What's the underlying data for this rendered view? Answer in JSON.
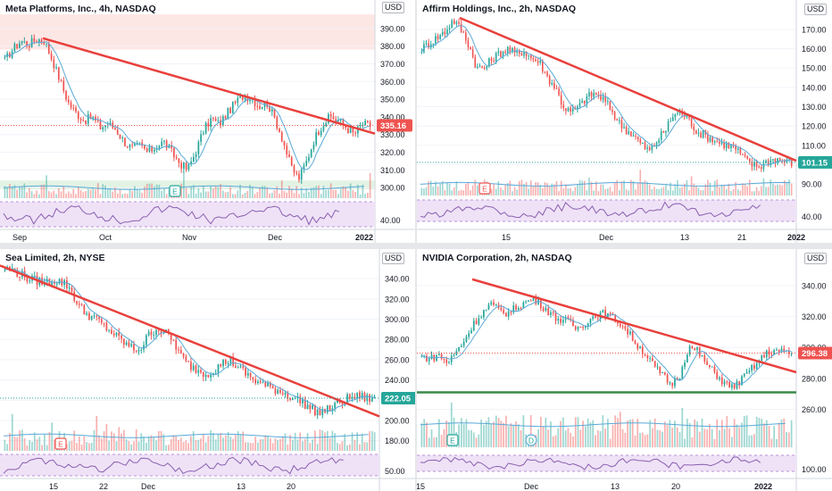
{
  "colors": {
    "up": "#26a69a",
    "down": "#ef5350",
    "trend": "#e8403c",
    "support": "#3a8a4b",
    "ma": "#5aa9d8",
    "rsi": "#8a5fb0",
    "rsi_band": "#efe2f7",
    "axis_text": "#131722",
    "grid": "#f0f3fa"
  },
  "chart_data": [
    {
      "type": "candlestick",
      "title": "Meta Platforms, Inc., 4h, NASDAQ",
      "currency_label": "USD",
      "y_ticks": [
        "390.00",
        "380.00",
        "370.00",
        "360.00",
        "350.00",
        "340.00",
        "330.00",
        "320.00",
        "310.00",
        "300.00"
      ],
      "rsi_tick": "40.00",
      "last_price": "335.16",
      "x_labels": [
        "Sep",
        "Oct",
        "Nov",
        "Dec",
        "2022"
      ],
      "earnings_marker": "E",
      "price_path": [
        372,
        378,
        383,
        381,
        384,
        383,
        372,
        360,
        348,
        342,
        338,
        340,
        334,
        336,
        333,
        326,
        322,
        324,
        320,
        323,
        326,
        320,
        314,
        310,
        320,
        332,
        339,
        336,
        342,
        348,
        352,
        351,
        346,
        348,
        339,
        327,
        312,
        305,
        315,
        328,
        336,
        340,
        338,
        334,
        330,
        336,
        335
      ],
      "trendline": {
        "from": 384.5,
        "to": 330.5
      },
      "top_zone": {
        "from": 378,
        "to": 398
      },
      "bottom_zone": {
        "from": 299,
        "to": 304
      }
    },
    {
      "type": "candlestick",
      "title": "Affirm Holdings, Inc., 2h, NASDAQ",
      "currency_label": "USD",
      "y_ticks": [
        "170.00",
        "160.00",
        "150.00",
        "140.00",
        "130.00",
        "120.00",
        "110.00",
        "100.00",
        "90.00"
      ],
      "rsi_tick": "40.00",
      "last_price": "101.15",
      "x_labels": [
        "15",
        "Dec",
        "13",
        "21",
        "2022"
      ],
      "earnings_marker": "E",
      "price_path": [
        160,
        163,
        166,
        169,
        175,
        170,
        162,
        150,
        150,
        155,
        158,
        160,
        157,
        159,
        155,
        153,
        145,
        140,
        130,
        127,
        130,
        135,
        137,
        134,
        129,
        122,
        118,
        115,
        110,
        107,
        113,
        118,
        126,
        127,
        123,
        117,
        115,
        113,
        111,
        110,
        108,
        103,
        100,
        99,
        102,
        103,
        102,
        101
      ],
      "trendline": {
        "from": 176,
        "to": 102
      },
      "top_zone": null,
      "bottom_zone": null
    },
    {
      "type": "candlestick",
      "title": "Sea Limited, 2h, NYSE",
      "currency_label": "USD",
      "y_ticks": [
        "340.00",
        "320.00",
        "300.00",
        "280.00",
        "260.00",
        "240.00",
        "220.00",
        "200.00",
        "180.00"
      ],
      "rsi_tick": "50.00",
      "last_price": "222.05",
      "x_labels": [
        "15",
        "22",
        "Dec",
        "13",
        "20"
      ],
      "earnings_marker": "E",
      "price_path": [
        350,
        348,
        344,
        340,
        338,
        336,
        339,
        337,
        332,
        316,
        306,
        302,
        296,
        289,
        282,
        276,
        270,
        272,
        286,
        291,
        286,
        278,
        262,
        254,
        250,
        246,
        250,
        256,
        260,
        252,
        246,
        240,
        236,
        232,
        230,
        226,
        222,
        218,
        212,
        208,
        210,
        214,
        219,
        223,
        224,
        222,
        221
      ],
      "trendline": {
        "from": 353,
        "to": 204
      },
      "top_zone": null,
      "bottom_zone": null
    },
    {
      "type": "candlestick",
      "title": "NVIDIA Corporation, 2h, NASDAQ",
      "currency_label": "USD",
      "y_ticks": [
        "340.00",
        "320.00",
        "300.00",
        "280.00",
        "260.00"
      ],
      "rsi_tick": "100.00",
      "last_price": "296.38",
      "x_labels": [
        "15",
        "Dec",
        "13",
        "20",
        "2022"
      ],
      "earnings_marker": "E",
      "dividend_marker": "D",
      "price_path": [
        294,
        293,
        295,
        290,
        297,
        305,
        315,
        322,
        328,
        324,
        322,
        326,
        329,
        331,
        327,
        322,
        318,
        317,
        312,
        316,
        320,
        322,
        320,
        316,
        310,
        302,
        296,
        288,
        282,
        276,
        282,
        300,
        298,
        290,
        284,
        278,
        274,
        278,
        284,
        290,
        296,
        298,
        297,
        296
      ],
      "trendline": {
        "from": 344,
        "to": 284
      },
      "support_line": 271,
      "top_zone": null,
      "bottom_zone": null
    }
  ]
}
